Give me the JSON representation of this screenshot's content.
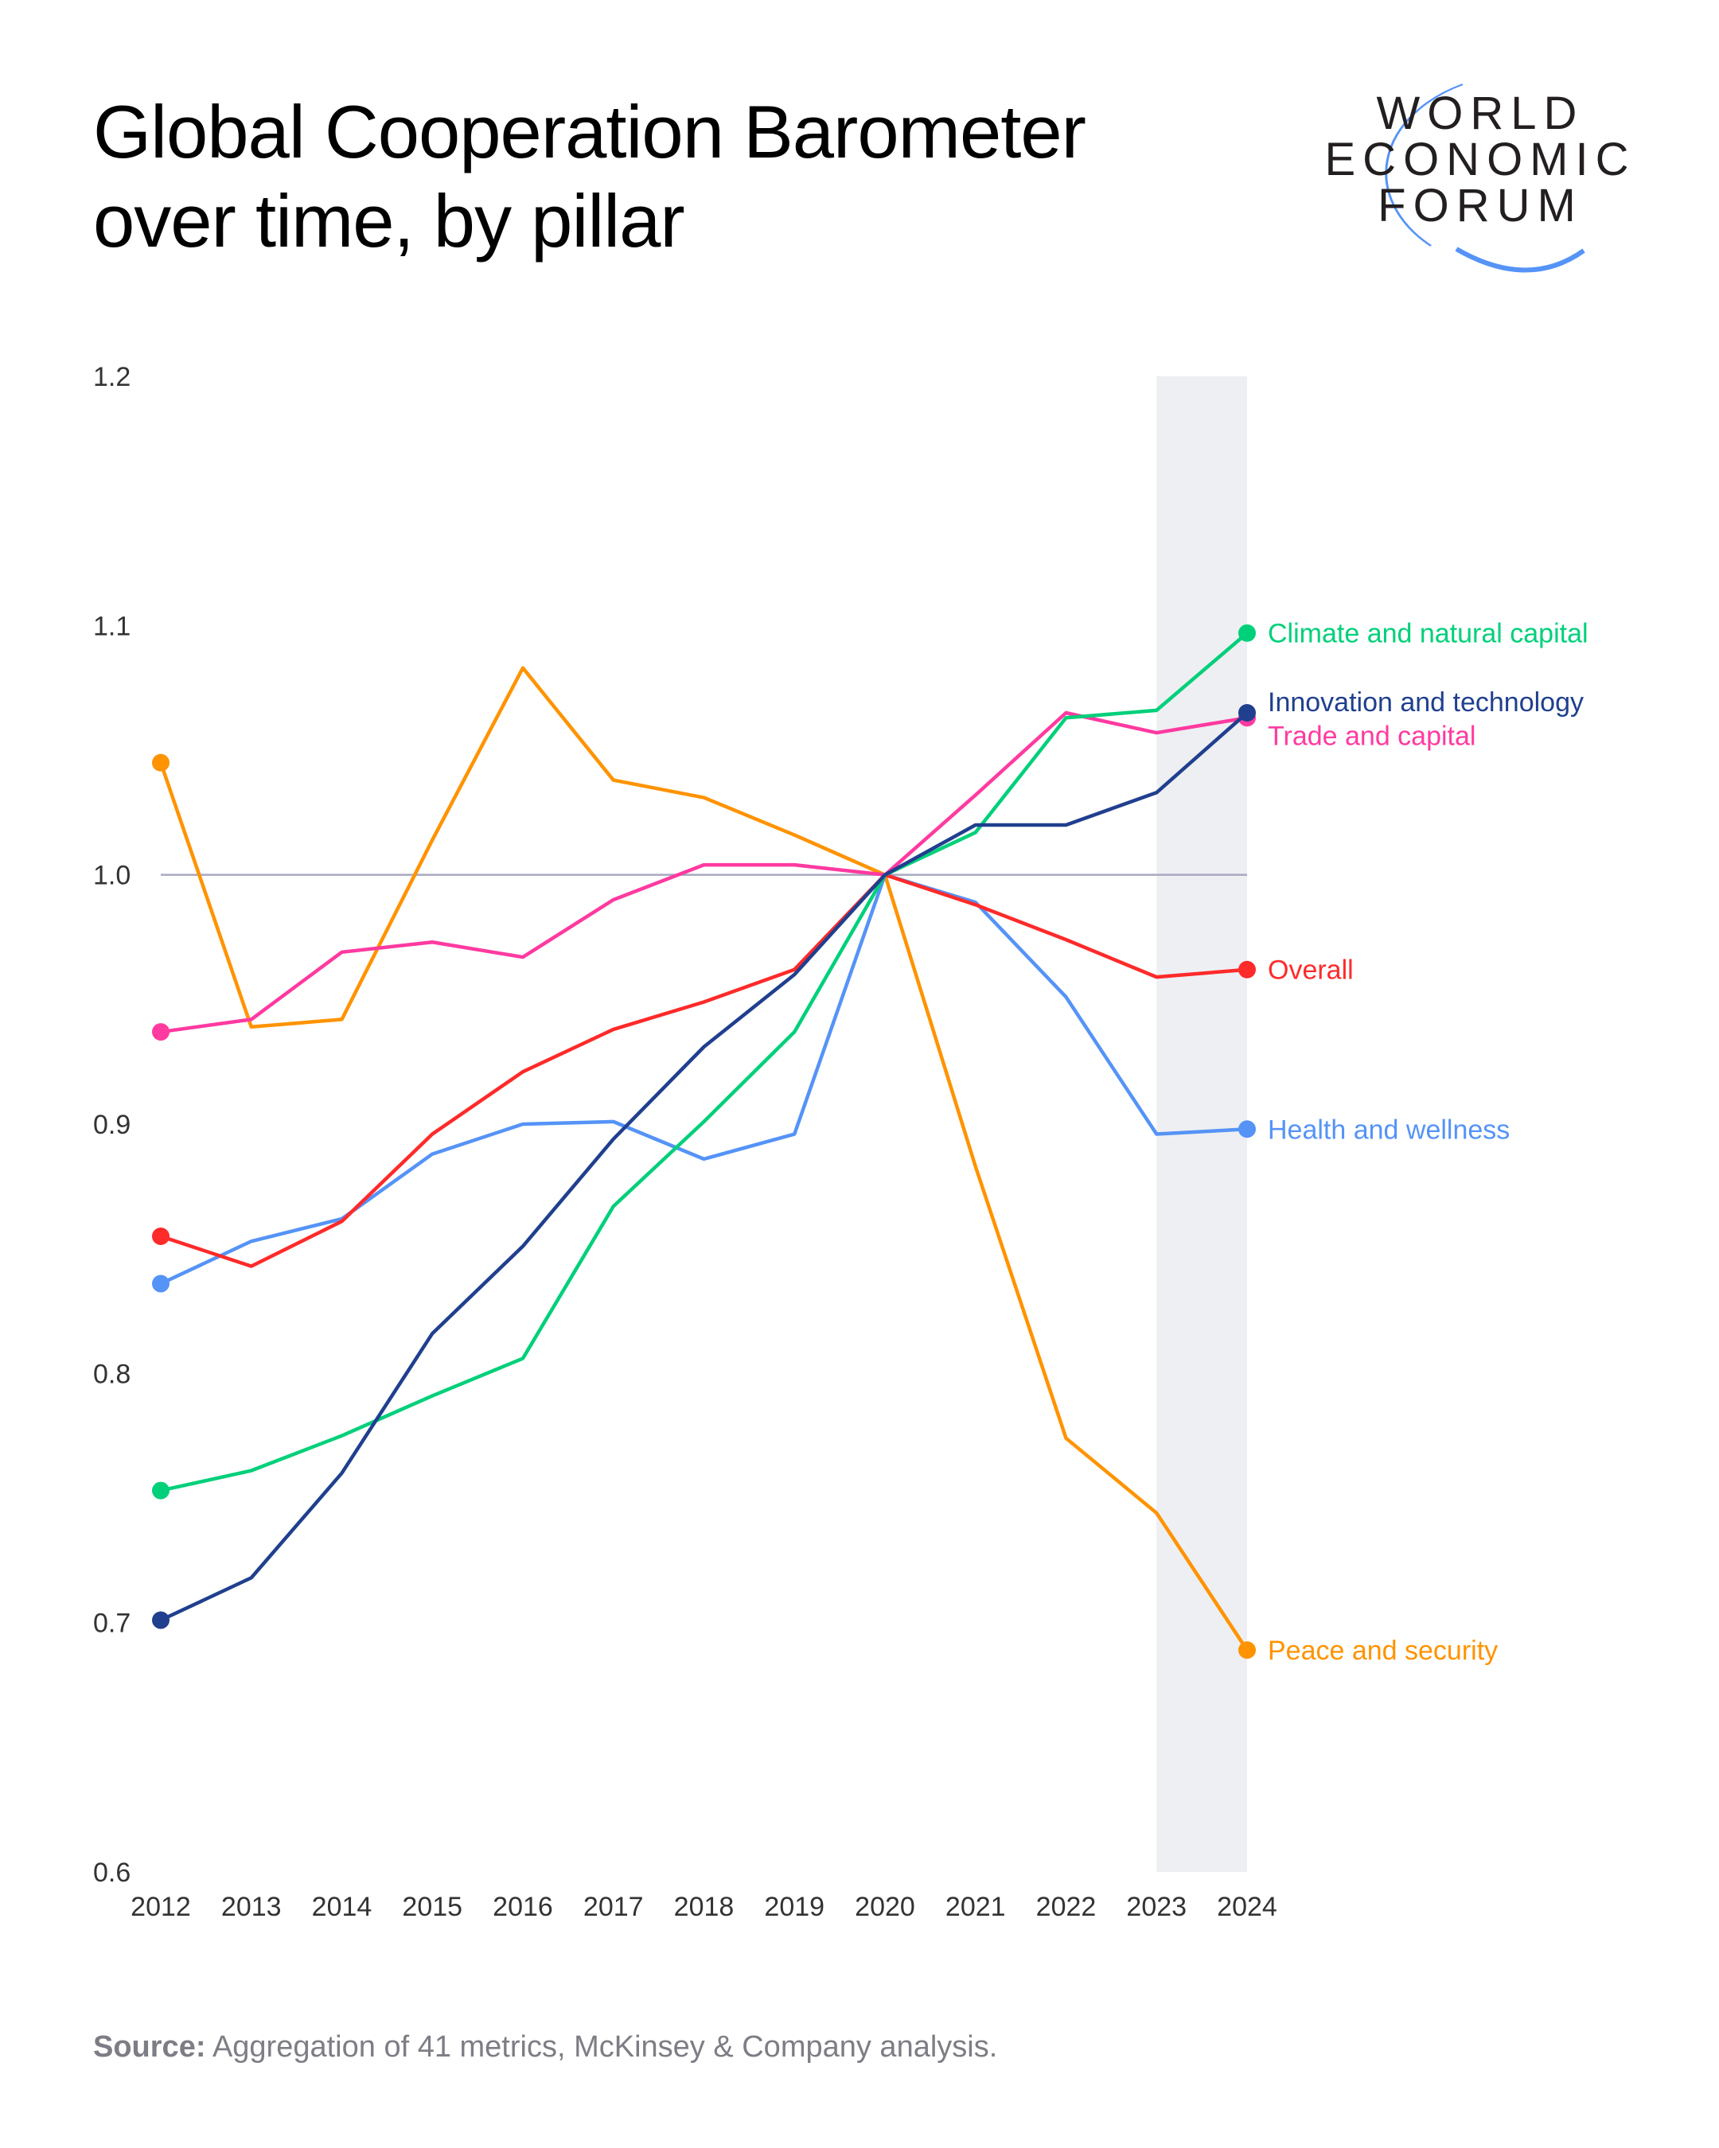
{
  "header": {
    "title_line1": "Global Cooperation Barometer",
    "title_line2": "over time, by pillar"
  },
  "logo": {
    "line1": "WORLD",
    "line2": "ECONOMIC",
    "line3": "FORUM",
    "arc_color": "#5593f7"
  },
  "source": {
    "label": "Source:",
    "text": " Aggregation of 41 metrics, McKinsey & Company analysis."
  },
  "chart_data": {
    "type": "line",
    "title": "Global Cooperation Barometer over time, by pillar",
    "x": [
      2012,
      2013,
      2014,
      2015,
      2016,
      2017,
      2018,
      2019,
      2020,
      2021,
      2022,
      2023,
      2024
    ],
    "ylim": [
      0.6,
      1.2
    ],
    "yticks": [
      "0.6",
      "0.7",
      "0.8",
      "0.9",
      "1.0",
      "1.1",
      "1.2"
    ],
    "xticks": [
      "2012",
      "2013",
      "2014",
      "2015",
      "2016",
      "2017",
      "2018",
      "2019",
      "2020",
      "2021",
      "2022",
      "2023",
      "2024"
    ],
    "reference_line": 1.0,
    "highlight_range": [
      2023,
      2024
    ],
    "grid": false,
    "legend": "direct labels at right end",
    "series": [
      {
        "name": "Peace and security",
        "color": "#ff9300",
        "values": [
          1.045,
          0.939,
          0.942,
          1.014,
          1.083,
          1.038,
          1.031,
          1.016,
          1.0,
          0.883,
          0.774,
          0.744,
          0.689
        ]
      },
      {
        "name": "Trade and capital",
        "color": "#ff3aa0",
        "values": [
          0.937,
          0.942,
          0.969,
          0.973,
          0.967,
          0.99,
          1.004,
          1.004,
          1.0,
          1.032,
          1.065,
          1.057,
          1.063
        ]
      },
      {
        "name": "Health and wellness",
        "color": "#5593f7",
        "values": [
          0.836,
          0.853,
          0.862,
          0.888,
          0.9,
          0.901,
          0.886,
          0.896,
          1.0,
          0.989,
          0.951,
          0.896,
          0.898
        ]
      },
      {
        "name": "Overall",
        "color": "#ff2a2a",
        "values": [
          0.855,
          0.843,
          0.861,
          0.896,
          0.921,
          0.938,
          0.949,
          0.962,
          1.0,
          0.988,
          0.974,
          0.959,
          0.962
        ]
      },
      {
        "name": "Climate and natural capital",
        "color": "#00d07a",
        "values": [
          0.753,
          0.761,
          0.775,
          0.791,
          0.806,
          0.867,
          0.901,
          0.937,
          1.0,
          1.017,
          1.063,
          1.066,
          1.097
        ]
      },
      {
        "name": "Innovation and technology",
        "color": "#203f8e",
        "values": [
          0.701,
          0.718,
          0.76,
          0.816,
          0.851,
          0.894,
          0.931,
          0.96,
          1.0,
          1.02,
          1.02,
          1.033,
          1.065
        ]
      }
    ]
  }
}
